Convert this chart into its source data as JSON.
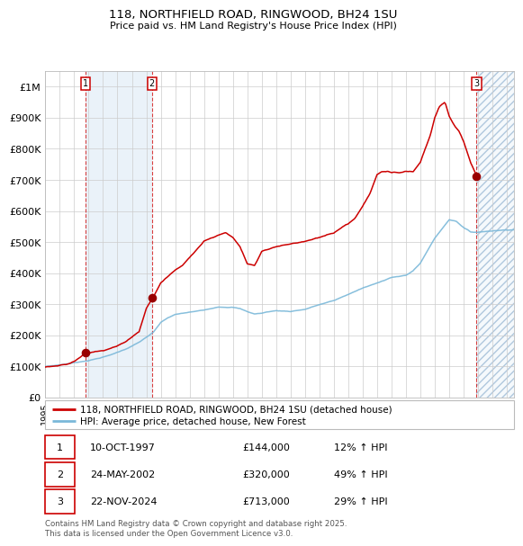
{
  "title_line1": "118, NORTHFIELD ROAD, RINGWOOD, BH24 1SU",
  "title_line2": "Price paid vs. HM Land Registry's House Price Index (HPI)",
  "legend_line1": "118, NORTHFIELD ROAD, RINGWOOD, BH24 1SU (detached house)",
  "legend_line2": "HPI: Average price, detached house, New Forest",
  "purchases": [
    {
      "num": 1,
      "date_label": "10-OCT-1997",
      "price": 144000,
      "hpi_pct": "12% ↑ HPI",
      "year": 1997.78
    },
    {
      "num": 2,
      "date_label": "24-MAY-2002",
      "price": 320000,
      "hpi_pct": "49% ↑ HPI",
      "year": 2002.39
    },
    {
      "num": 3,
      "date_label": "22-NOV-2024",
      "price": 713000,
      "hpi_pct": "29% ↑ HPI",
      "year": 2024.89
    }
  ],
  "hpi_color": "#7ab8d9",
  "price_color": "#cc0000",
  "marker_color": "#990000",
  "grid_color": "#cccccc",
  "bg_shade_color": "#dae8f5",
  "footnote": "Contains HM Land Registry data © Crown copyright and database right 2025.\nThis data is licensed under the Open Government Licence v3.0.",
  "ylim": [
    0,
    1050000
  ],
  "xlim_start": 1995.0,
  "xlim_end": 2027.5,
  "yticks": [
    0,
    100000,
    200000,
    300000,
    400000,
    500000,
    600000,
    700000,
    800000,
    900000,
    1000000
  ],
  "ytick_labels": [
    "£0",
    "£100K",
    "£200K",
    "£300K",
    "£400K",
    "£500K",
    "£600K",
    "£700K",
    "£800K",
    "£900K",
    "£1M"
  ]
}
